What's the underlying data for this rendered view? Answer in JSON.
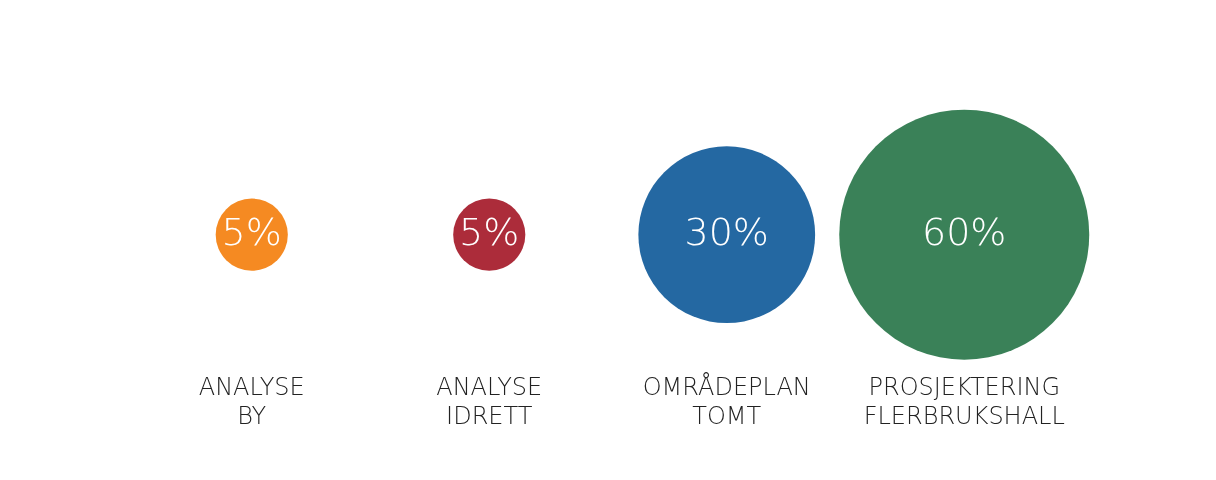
{
  "chart_data": {
    "type": "other",
    "categories": [
      "ANALYSE\nBY",
      "ANALYSE\nIDRETT",
      "OMRÅDEPLAN\nTOMT",
      "PROSJEKTERING\nFLERBRUKSHALL"
    ],
    "values": [
      5,
      5,
      30,
      60
    ],
    "value_labels": [
      "5%",
      "5%",
      "30%",
      "60%"
    ],
    "colors": [
      "#f58a22",
      "#ac2c3a",
      "#2468a2",
      "#3a8158"
    ]
  }
}
